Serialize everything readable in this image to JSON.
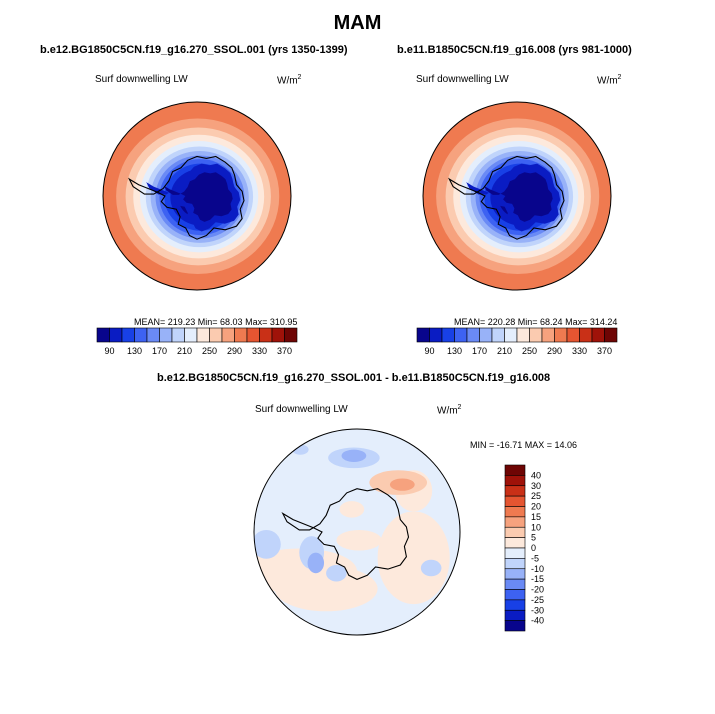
{
  "title": "MAM",
  "panels": [
    {
      "case_title": "b.e12.BG1850C5CN.f19_g16.270_SSOL.001 (yrs 1350-1399)",
      "var_label": "Surf downwelling LW",
      "unit_base": "W/m",
      "unit_exp": "2",
      "stats": "MEAN= 219.23  Min=  68.03  Max=  310.95",
      "colorbar_labels": [
        "90",
        "130",
        "170",
        "210",
        "250",
        "290",
        "330",
        "370"
      ]
    },
    {
      "case_title": "b.e11.B1850C5CN.f19_g16.008 (yrs 981-1000)",
      "var_label": "Surf downwelling LW",
      "unit_base": "W/m",
      "unit_exp": "2",
      "stats": "MEAN= 220.28  Min=  68.24  Max=  314.24",
      "colorbar_labels": [
        "90",
        "130",
        "170",
        "210",
        "250",
        "290",
        "330",
        "370"
      ]
    }
  ],
  "diff": {
    "case_title": "b.e12.BG1850C5CN.f19_g16.270_SSOL.001 - b.e11.B1850C5CN.f19_g16.008",
    "var_label": "Surf downwelling LW",
    "unit_base": "W/m",
    "unit_exp": "2",
    "stats": "MIN = -16.71 MAX =  14.06",
    "colorbar_labels": [
      "40",
      "30",
      "25",
      "20",
      "15",
      "10",
      "5",
      "0",
      "-5",
      "-10",
      "-15",
      "-20",
      "-25",
      "-30",
      "-40"
    ]
  },
  "chart_data": [
    {
      "type": "heatmap",
      "projection": "south polar stereographic",
      "title": "b.e12.BG1850C5CN.f19_g16.270_SSOL.001 (yrs 1350-1399)",
      "variable": "Surf downwelling LW",
      "units": "W/m2",
      "mean": 219.23,
      "min": 68.03,
      "max": 310.95,
      "levels": [
        90,
        110,
        130,
        150,
        170,
        190,
        210,
        230,
        250,
        270,
        290,
        310,
        330,
        350,
        370
      ],
      "colors": [
        "#08058c",
        "#0a1cc3",
        "#1840e6",
        "#3d62f2",
        "#6a8af5",
        "#98b2f8",
        "#c0d4fb",
        "#e4eefc",
        "#fde9dc",
        "#fbcbb0",
        "#f6a27e",
        "#ef7a50",
        "#e55531",
        "#c93017",
        "#9f1209",
        "#6e0504"
      ]
    },
    {
      "type": "heatmap",
      "projection": "south polar stereographic",
      "title": "b.e11.B1850C5CN.f19_g16.008 (yrs 981-1000)",
      "variable": "Surf downwelling LW",
      "units": "W/m2",
      "mean": 220.28,
      "min": 68.24,
      "max": 314.24,
      "levels": [
        90,
        110,
        130,
        150,
        170,
        190,
        210,
        230,
        250,
        270,
        290,
        310,
        330,
        350,
        370
      ],
      "colors": [
        "#08058c",
        "#0a1cc3",
        "#1840e6",
        "#3d62f2",
        "#6a8af5",
        "#98b2f8",
        "#c0d4fb",
        "#e4eefc",
        "#fde9dc",
        "#fbcbb0",
        "#f6a27e",
        "#ef7a50",
        "#e55531",
        "#c93017",
        "#9f1209",
        "#6e0504"
      ]
    },
    {
      "type": "heatmap",
      "projection": "south polar stereographic",
      "title": "b.e12.BG1850C5CN.f19_g16.270_SSOL.001 - b.e11.B1850C5CN.f19_g16.008",
      "variable": "Surf downwelling LW",
      "units": "W/m2",
      "min": -16.71,
      "max": 14.06,
      "levels": [
        -40,
        -30,
        -25,
        -20,
        -15,
        -10,
        -5,
        0,
        5,
        10,
        15,
        20,
        25,
        30,
        40
      ],
      "colors": [
        "#08058c",
        "#0a1cc3",
        "#1840e6",
        "#3d62f2",
        "#6a8af5",
        "#98b2f8",
        "#c0d4fb",
        "#e4eefc",
        "#fde9dc",
        "#fbcbb0",
        "#f6a27e",
        "#ef7a50",
        "#e55531",
        "#c93017",
        "#9f1209",
        "#6e0504"
      ]
    }
  ]
}
